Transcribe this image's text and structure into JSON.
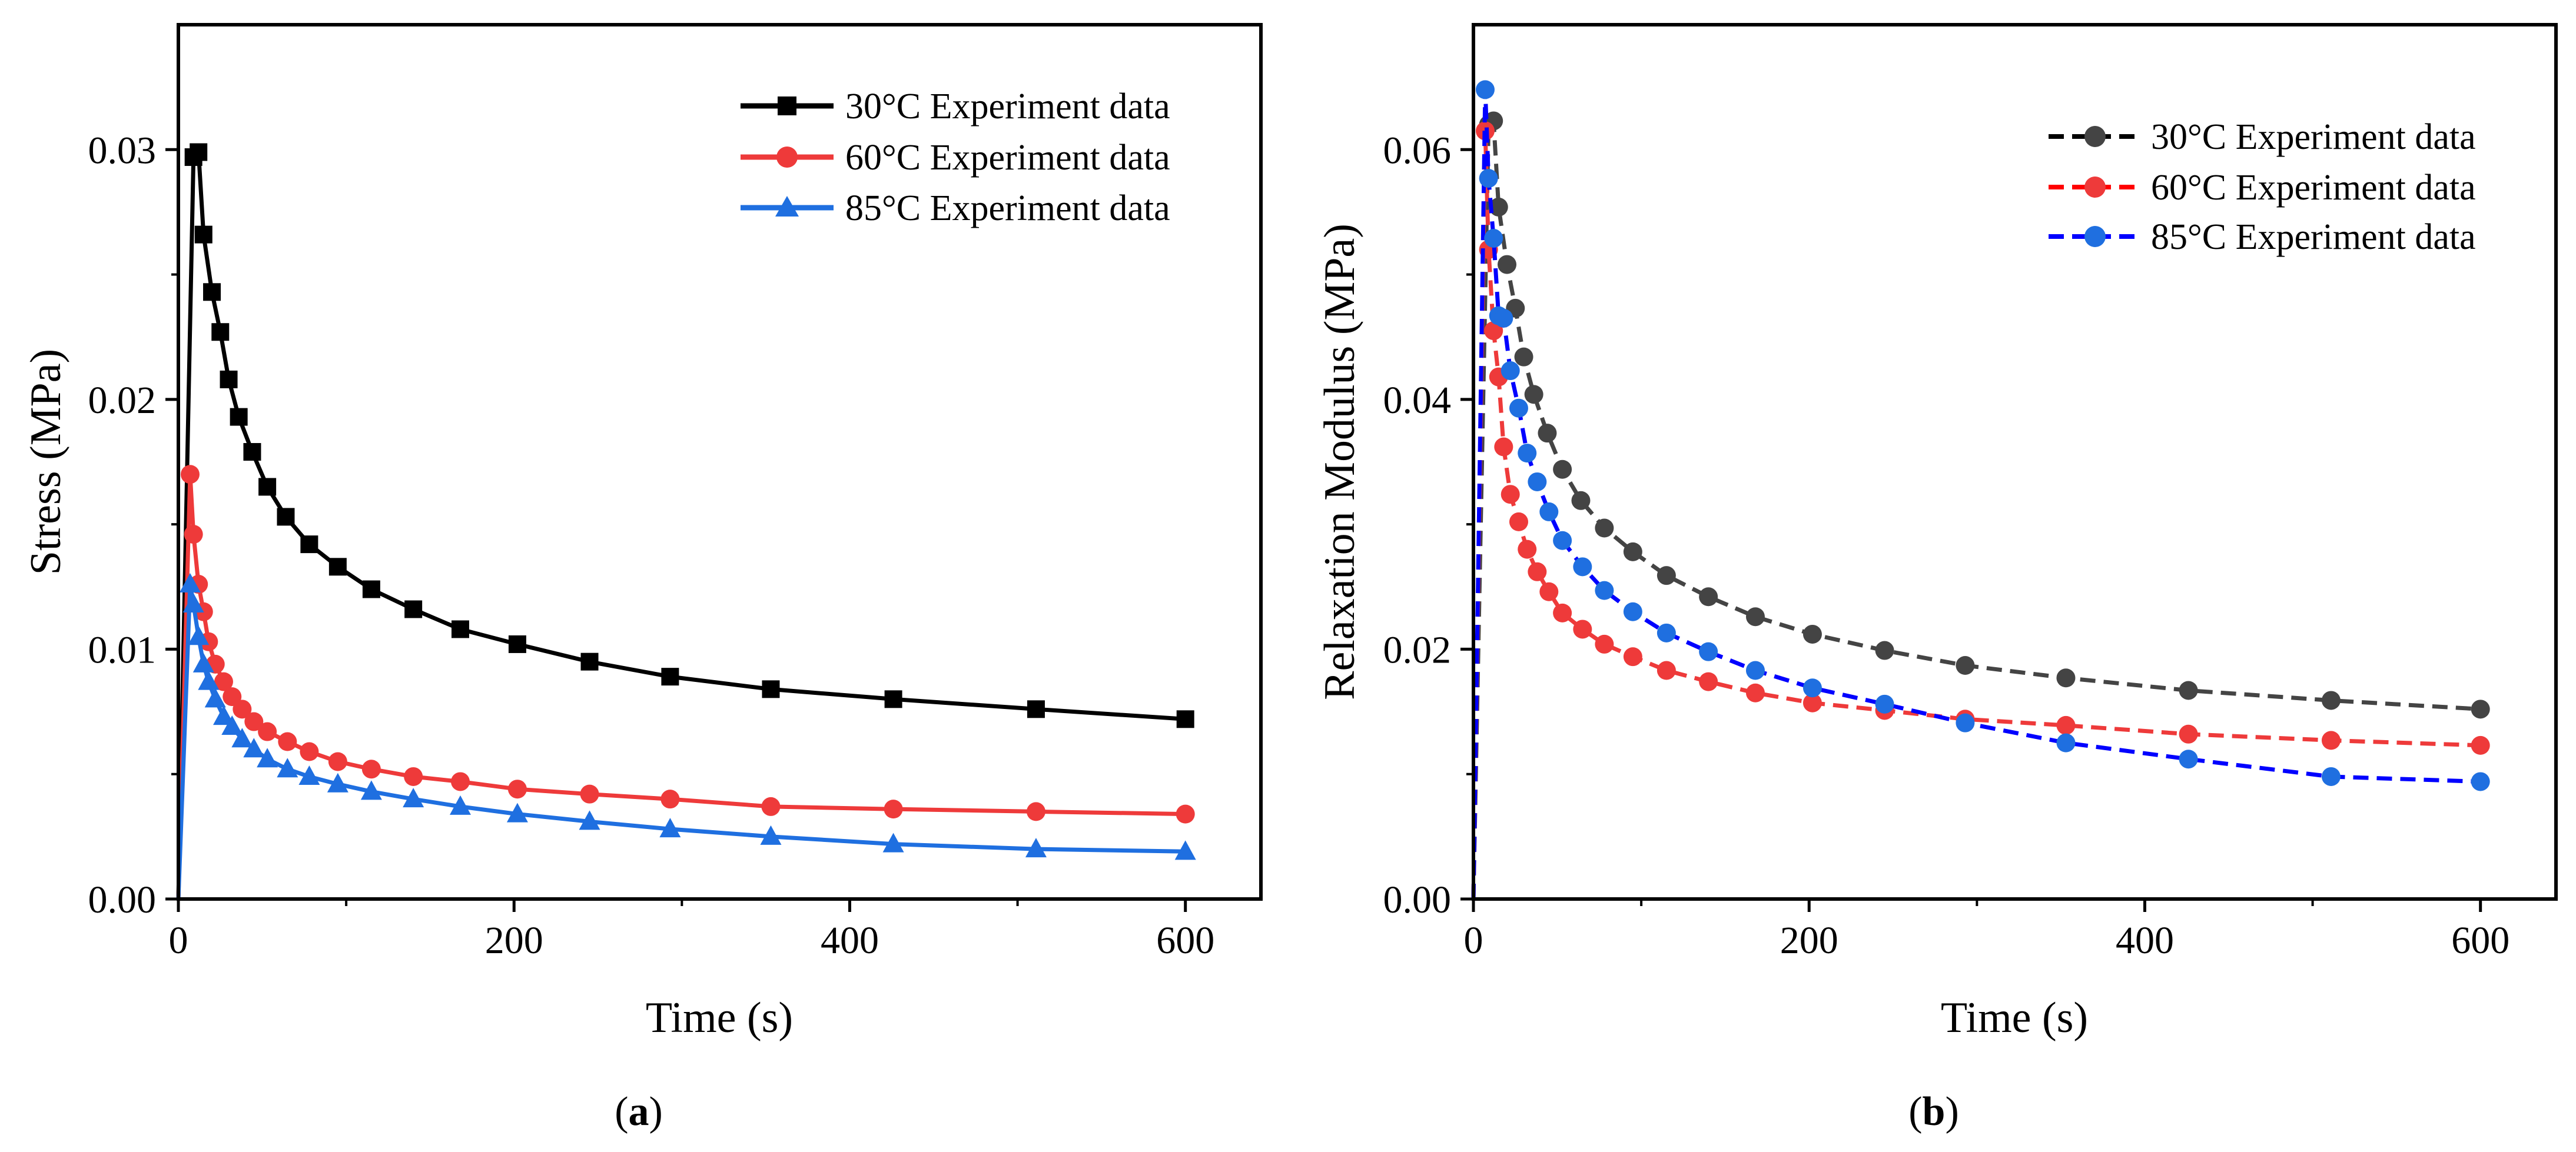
{
  "chart_data": [
    {
      "type": "line",
      "panel": "a",
      "panel_label": {
        "open": "(",
        "letter": "a",
        "close": ")"
      },
      "xlabel": "Time (s)",
      "ylabel": "Stress (MPa)",
      "xlim": [
        0,
        645
      ],
      "ylim": [
        0,
        0.035
      ],
      "xticks": [
        0,
        200,
        400,
        600
      ],
      "xtick_labels": [
        "0",
        "200",
        "400",
        "600"
      ],
      "yticks": [
        0,
        0.01,
        0.02,
        0.03
      ],
      "ytick_labels": [
        "0.00",
        "0.01",
        "0.02",
        "0.03"
      ],
      "legend_position": "top-right",
      "series": [
        {
          "name": "30°C Experiment data",
          "color": "#000000",
          "marker": "square",
          "x": [
            0,
            9,
            12,
            15,
            20,
            25,
            30,
            36,
            44,
            53,
            64,
            78,
            95,
            115,
            140,
            168,
            202,
            245,
            293,
            353,
            426,
            511,
            600
          ],
          "y": [
            0,
            0.0297,
            0.0299,
            0.0266,
            0.0243,
            0.0227,
            0.0208,
            0.0193,
            0.0179,
            0.0165,
            0.0153,
            0.0142,
            0.0133,
            0.0124,
            0.0116,
            0.0108,
            0.0102,
            0.0095,
            0.0089,
            0.0084,
            0.008,
            0.0076,
            0.0072
          ]
        },
        {
          "name": "60°C Experiment data",
          "color": "#ee3a3a",
          "marker": "circle",
          "x": [
            0,
            7,
            9,
            12,
            15,
            18,
            22,
            27,
            32,
            38,
            45,
            53,
            65,
            78,
            95,
            115,
            140,
            168,
            202,
            245,
            293,
            353,
            426,
            511,
            600
          ],
          "y": [
            0,
            0.017,
            0.0146,
            0.0126,
            0.0115,
            0.0103,
            0.0094,
            0.0087,
            0.0081,
            0.0076,
            0.0071,
            0.0067,
            0.0063,
            0.0059,
            0.0055,
            0.0052,
            0.0049,
            0.0047,
            0.0044,
            0.0042,
            0.004,
            0.0037,
            0.0036,
            0.0035,
            0.0034
          ]
        },
        {
          "name": "85°C Experiment data",
          "color": "#1f6fe0",
          "marker": "triangle",
          "x": [
            0,
            7,
            9,
            12,
            15,
            18,
            22,
            27,
            32,
            38,
            45,
            53,
            65,
            78,
            95,
            115,
            140,
            168,
            202,
            245,
            293,
            353,
            426,
            511,
            600
          ],
          "y": [
            0,
            0.0126,
            0.0118,
            0.0105,
            0.0094,
            0.0087,
            0.008,
            0.0073,
            0.0069,
            0.0064,
            0.006,
            0.0056,
            0.0052,
            0.0049,
            0.0046,
            0.0043,
            0.004,
            0.0037,
            0.0034,
            0.0031,
            0.0028,
            0.0025,
            0.0022,
            0.002,
            0.0019
          ]
        }
      ]
    },
    {
      "type": "line",
      "panel": "b",
      "panel_label": {
        "open": "(",
        "letter": "b",
        "close": ")"
      },
      "xlabel": "Time (s)",
      "ylabel": "Relaxation Modulus (MPa)",
      "xlim": [
        0,
        645
      ],
      "ylim": [
        0,
        0.07
      ],
      "xticks": [
        0,
        200,
        400,
        600
      ],
      "xtick_labels": [
        "0",
        "200",
        "400",
        "600"
      ],
      "yticks": [
        0,
        0.02,
        0.04,
        0.06
      ],
      "ytick_labels": [
        "0.00",
        "0.02",
        "0.04",
        "0.06"
      ],
      "legend_position": "top-right",
      "series": [
        {
          "name": "30°C Experiment data",
          "color": "#444444",
          "marker": "circle",
          "line_style": "dashed",
          "x": [
            0,
            9,
            12,
            15,
            20,
            25,
            30,
            36,
            44,
            53,
            64,
            78,
            95,
            115,
            140,
            168,
            202,
            245,
            293,
            353,
            426,
            511,
            600
          ],
          "y": [
            0,
            0.062,
            0.0623,
            0.0554,
            0.0508,
            0.0473,
            0.0434,
            0.0404,
            0.0373,
            0.0344,
            0.0319,
            0.0297,
            0.0278,
            0.0259,
            0.0242,
            0.0226,
            0.0212,
            0.0199,
            0.0187,
            0.0177,
            0.0167,
            0.0159,
            0.0152
          ]
        },
        {
          "name": "60°C Experiment data",
          "color": "#ee3a3a",
          "marker": "circle",
          "line_style": "dashed",
          "x": [
            0,
            7,
            9,
            12,
            15,
            18,
            22,
            27,
            32,
            38,
            45,
            53,
            65,
            78,
            95,
            115,
            140,
            168,
            202,
            245,
            293,
            353,
            426,
            511,
            600
          ],
          "y": [
            0,
            0.0615,
            0.052,
            0.0455,
            0.0418,
            0.0362,
            0.0324,
            0.0302,
            0.028,
            0.0262,
            0.0246,
            0.0229,
            0.0216,
            0.0204,
            0.0194,
            0.0183,
            0.0174,
            0.0165,
            0.0157,
            0.0151,
            0.0144,
            0.0139,
            0.0132,
            0.0127,
            0.0123
          ]
        },
        {
          "name": "85°C Experiment data",
          "color": "#1f6fe0",
          "marker": "circle",
          "line_style": "dashed",
          "line_color": "#0000ff",
          "x": [
            0,
            7,
            9,
            12,
            15,
            18,
            22,
            27,
            32,
            38,
            45,
            53,
            65,
            78,
            95,
            115,
            140,
            168,
            202,
            245,
            293,
            353,
            426,
            511,
            600
          ],
          "y": [
            0,
            0.0648,
            0.0577,
            0.0529,
            0.0467,
            0.0465,
            0.0423,
            0.0393,
            0.0357,
            0.0334,
            0.031,
            0.0287,
            0.0266,
            0.0247,
            0.023,
            0.0213,
            0.0198,
            0.0183,
            0.0169,
            0.0156,
            0.0141,
            0.0125,
            0.0112,
            0.0098,
            0.0094
          ]
        }
      ]
    }
  ]
}
